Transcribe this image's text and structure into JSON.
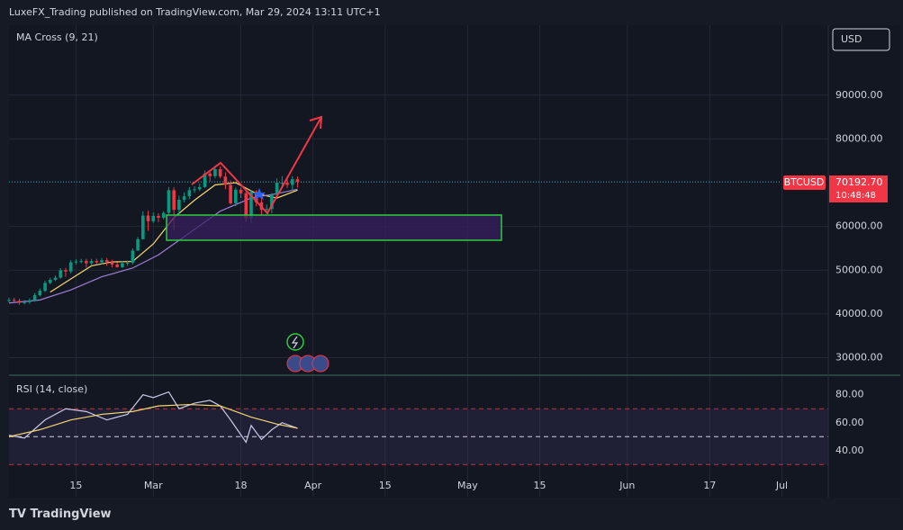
{
  "header": "LuxeFX_Trading published on TradingView.com, Mar 29, 2024 13:11 UTC+1",
  "logo": "TradingView",
  "chart_data": [
    {
      "type": "candlestick",
      "title": "MA Cross (9, 21)",
      "symbol": "BTCUSD",
      "currency": "USD",
      "countdown": "10:48:48",
      "last_price": {
        "value": 70192.7,
        "label": "70192.70"
      },
      "up_color": "#089981",
      "down_color": "#f23645",
      "grid": true,
      "x": [
        "2024-02-02",
        "2024-02-03",
        "2024-02-04",
        "2024-02-05",
        "2024-02-06",
        "2024-02-07",
        "2024-02-08",
        "2024-02-09",
        "2024-02-10",
        "2024-02-11",
        "2024-02-12",
        "2024-02-13",
        "2024-02-14",
        "2024-02-15",
        "2024-02-16",
        "2024-02-17",
        "2024-02-18",
        "2024-02-19",
        "2024-02-20",
        "2024-02-21",
        "2024-02-22",
        "2024-02-23",
        "2024-02-24",
        "2024-02-25",
        "2024-02-26",
        "2024-02-27",
        "2024-02-28",
        "2024-02-29",
        "2024-03-01",
        "2024-03-02",
        "2024-03-03",
        "2024-03-04",
        "2024-03-05",
        "2024-03-06",
        "2024-03-07",
        "2024-03-08",
        "2024-03-09",
        "2024-03-10",
        "2024-03-11",
        "2024-03-12",
        "2024-03-13",
        "2024-03-14",
        "2024-03-15",
        "2024-03-16",
        "2024-03-17",
        "2024-03-18",
        "2024-03-19",
        "2024-03-20",
        "2024-03-21",
        "2024-03-22",
        "2024-03-23",
        "2024-03-24",
        "2024-03-25",
        "2024-03-26",
        "2024-03-27",
        "2024-03-28",
        "2024-03-29"
      ],
      "open": [
        43100,
        43200,
        43000,
        42600,
        42700,
        43100,
        44300,
        45300,
        47100,
        47800,
        48300,
        50000,
        49700,
        51800,
        52000,
        52100,
        51600,
        52100,
        51800,
        52300,
        51900,
        51300,
        50700,
        51600,
        51700,
        54500,
        57100,
        62500,
        61200,
        62400,
        62000,
        63100,
        68300,
        63800,
        66100,
        66900,
        68300,
        68500,
        69000,
        72100,
        71500,
        73100,
        71400,
        69500,
        65300,
        68400,
        67600,
        61900,
        67900,
        65500,
        63800,
        64000,
        67200,
        70000,
        70000,
        69500,
        70800
      ],
      "high": [
        43700,
        43700,
        43500,
        43200,
        43600,
        44800,
        45800,
        47600,
        48300,
        48800,
        50500,
        50500,
        52300,
        52500,
        52600,
        52600,
        52600,
        52600,
        52800,
        52800,
        52400,
        51800,
        52100,
        52200,
        55000,
        57600,
        63500,
        63600,
        63200,
        63000,
        63500,
        69000,
        69000,
        67000,
        67800,
        69000,
        69200,
        69800,
        72800,
        72900,
        73800,
        73700,
        72400,
        70500,
        68900,
        68900,
        68100,
        68300,
        68300,
        66600,
        65000,
        67600,
        71000,
        71500,
        71000,
        71500,
        71400
      ],
      "low": [
        42600,
        42500,
        42100,
        42200,
        42300,
        42800,
        44000,
        45000,
        46800,
        47500,
        48000,
        48500,
        49300,
        51300,
        51600,
        50600,
        51000,
        51300,
        51400,
        51000,
        50600,
        50600,
        50500,
        51000,
        51300,
        54400,
        57000,
        59000,
        60800,
        61000,
        61600,
        62800,
        59200,
        62800,
        65500,
        66200,
        67700,
        68100,
        68800,
        70300,
        71000,
        71000,
        68500,
        65000,
        64600,
        66500,
        61000,
        60800,
        64600,
        62500,
        62900,
        63000,
        66800,
        68900,
        68800,
        68300,
        68900
      ],
      "close": [
        43200,
        43000,
        42600,
        42700,
        43100,
        44300,
        45300,
        47100,
        47800,
        48300,
        50000,
        49700,
        51800,
        52000,
        52100,
        51600,
        52100,
        51800,
        52300,
        51900,
        51300,
        50700,
        51600,
        51700,
        54500,
        57100,
        62500,
        61200,
        62400,
        62000,
        63100,
        68300,
        63800,
        66100,
        66900,
        68300,
        68500,
        69000,
        72100,
        71500,
        73100,
        71400,
        69500,
        65300,
        68400,
        67600,
        61900,
        67900,
        65500,
        63800,
        64000,
        67200,
        70000,
        70000,
        69500,
        70800,
        70192.7
      ],
      "lines": [
        {
          "color": "#f5d76e",
          "x": [
            "2024-02-10",
            "2024-02-14",
            "2024-02-18",
            "2024-02-22",
            "2024-02-26",
            "2024-03-01",
            "2024-03-05",
            "2024-03-09",
            "2024-03-13",
            "2024-03-17",
            "2024-03-21",
            "2024-03-25",
            "2024-03-29"
          ],
          "values": [
            45000,
            48000,
            51000,
            51900,
            52000,
            56000,
            62000,
            66000,
            69500,
            70000,
            67500,
            66500,
            68300
          ]
        },
        {
          "color": "#9d7fd6",
          "x": [
            "2024-02-02",
            "2024-02-08",
            "2024-02-14",
            "2024-02-20",
            "2024-02-26",
            "2024-03-02",
            "2024-03-08",
            "2024-03-14",
            "2024-03-20",
            "2024-03-25",
            "2024-03-29"
          ],
          "values": [
            42500,
            43200,
            45500,
            48500,
            50500,
            53500,
            58500,
            63500,
            66500,
            67500,
            68500
          ]
        }
      ],
      "xlim": [
        "2024-02-02",
        "2024-07-10"
      ],
      "xticks": [
        {
          "value": "2024-02-15",
          "label": "15"
        },
        {
          "value": "2024-03-01",
          "label": "Mar"
        },
        {
          "value": "2024-03-18",
          "label": "18"
        },
        {
          "value": "2024-04-01",
          "label": "Apr"
        },
        {
          "value": "2024-04-15",
          "label": "15"
        },
        {
          "value": "2024-05-01",
          "label": "May"
        },
        {
          "value": "2024-05-15",
          "label": "15"
        },
        {
          "value": "2024-06-01",
          "label": "Jun"
        },
        {
          "value": "2024-06-17",
          "label": "17"
        },
        {
          "value": "2024-07-01",
          "label": "Jul"
        }
      ],
      "ylim": [
        26000,
        106000
      ],
      "yticks": [
        {
          "value": 90000,
          "label": "90000.00"
        },
        {
          "value": 80000,
          "label": "80000.00"
        },
        {
          "value": 60000,
          "label": "60000.00"
        },
        {
          "value": 50000,
          "label": "50000.00"
        },
        {
          "value": 40000,
          "label": "40000.00"
        },
        {
          "value": 30000,
          "label": "30000.00"
        }
      ]
    },
    {
      "type": "line",
      "title": "RSI (14, close)",
      "grid": true,
      "band": [
        30,
        70
      ],
      "band_color": "#7e57c2",
      "level_color": "#f23645",
      "midline": 50,
      "series": [
        {
          "color": "#c9c9e8",
          "x": [
            "2024-02-02",
            "2024-02-05",
            "2024-02-09",
            "2024-02-13",
            "2024-02-17",
            "2024-02-21",
            "2024-02-25",
            "2024-02-28",
            "2024-03-01",
            "2024-03-04",
            "2024-03-06",
            "2024-03-09",
            "2024-03-12",
            "2024-03-14",
            "2024-03-16",
            "2024-03-19",
            "2024-03-20",
            "2024-03-22",
            "2024-03-24",
            "2024-03-26",
            "2024-03-29"
          ],
          "values": [
            51,
            49,
            62,
            70,
            68,
            62,
            66,
            80,
            78,
            82,
            70,
            74,
            76,
            72,
            62,
            46,
            58,
            48,
            55,
            60,
            56
          ]
        },
        {
          "color": "#f5d76e",
          "x": [
            "2024-02-02",
            "2024-02-08",
            "2024-02-14",
            "2024-02-20",
            "2024-02-26",
            "2024-03-02",
            "2024-03-08",
            "2024-03-14",
            "2024-03-20",
            "2024-03-25",
            "2024-03-29"
          ],
          "values": [
            50,
            55,
            62,
            66,
            68,
            72,
            73,
            72,
            64,
            59,
            56
          ]
        }
      ],
      "xlim": [
        "2024-02-02",
        "2024-07-10"
      ],
      "ylim": [
        7,
        94
      ],
      "yticks": [
        {
          "value": 80,
          "label": "80.00"
        },
        {
          "value": 60,
          "label": "60.00"
        },
        {
          "value": 40,
          "label": "40.00"
        }
      ]
    }
  ]
}
